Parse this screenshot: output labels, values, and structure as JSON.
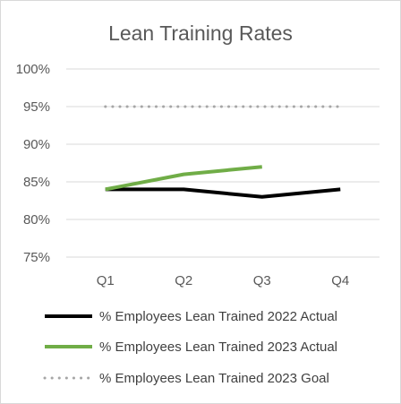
{
  "chart_data": {
    "type": "line",
    "title": "Lean Training Rates",
    "categories": [
      "Q1",
      "Q2",
      "Q3",
      "Q4"
    ],
    "y_ticks": [
      "75%",
      "80%",
      "85%",
      "90%",
      "95%",
      "100%"
    ],
    "ylim": [
      75,
      100
    ],
    "grid": true,
    "legend_position": "bottom",
    "series": [
      {
        "name": "% Employees Lean Trained 2022 Actual",
        "values": [
          84,
          84,
          83,
          84
        ],
        "color": "#000000",
        "style": "solid"
      },
      {
        "name": "% Employees Lean Trained 2023 Actual",
        "values": [
          84,
          86,
          87,
          null
        ],
        "color": "#70ad47",
        "style": "solid"
      },
      {
        "name": "% Employees Lean Trained 2023 Goal",
        "values": [
          95,
          95,
          95,
          95
        ],
        "color": "#a6a6a6",
        "style": "dotted"
      }
    ]
  }
}
